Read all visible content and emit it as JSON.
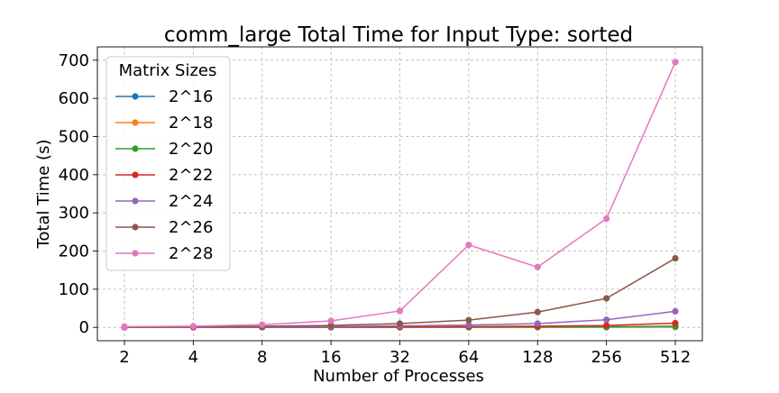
{
  "chart_data": {
    "type": "line",
    "title": "comm_large Total Time for Input Type: sorted",
    "xlabel": "Number of Processes",
    "ylabel": "Total Time (s)",
    "categories": [
      "2",
      "4",
      "8",
      "16",
      "32",
      "64",
      "128",
      "256",
      "512"
    ],
    "y_ticks": [
      "0",
      "100",
      "200",
      "300",
      "400",
      "500",
      "600",
      "700"
    ],
    "ylim": [
      -35,
      735
    ],
    "grid": true,
    "legend": {
      "title": "Matrix Sizes",
      "position": "top-left"
    },
    "series": [
      {
        "name": "2^16",
        "color": "#1f77b4",
        "values": [
          0.3,
          0.3,
          0.3,
          0.3,
          0.3,
          0.3,
          0.4,
          0.5,
          1.0
        ]
      },
      {
        "name": "2^18",
        "color": "#ff7f0e",
        "values": [
          0.3,
          0.3,
          0.3,
          0.3,
          0.3,
          0.4,
          0.5,
          1.0,
          2.0
        ]
      },
      {
        "name": "2^20",
        "color": "#2ca02c",
        "values": [
          0.3,
          0.3,
          0.3,
          0.4,
          0.5,
          0.7,
          1.0,
          1.5,
          3.0
        ]
      },
      {
        "name": "2^22",
        "color": "#d62728",
        "values": [
          0.4,
          0.4,
          0.5,
          0.8,
          1.2,
          2.0,
          3.0,
          5.0,
          11.0
        ]
      },
      {
        "name": "2^24",
        "color": "#9467bd",
        "values": [
          0.6,
          0.8,
          1.0,
          2.0,
          4.0,
          6.0,
          10.0,
          20.0,
          42.0
        ]
      },
      {
        "name": "2^26",
        "color": "#8c564b",
        "values": [
          1.0,
          1.5,
          3.0,
          5.0,
          10.0,
          19.0,
          40.0,
          76.0,
          181.0
        ]
      },
      {
        "name": "2^28",
        "color": "#e377c2",
        "values": [
          2.0,
          3.0,
          7.0,
          17.0,
          43.0,
          216.0,
          158.0,
          285.0,
          695.0
        ]
      }
    ]
  }
}
